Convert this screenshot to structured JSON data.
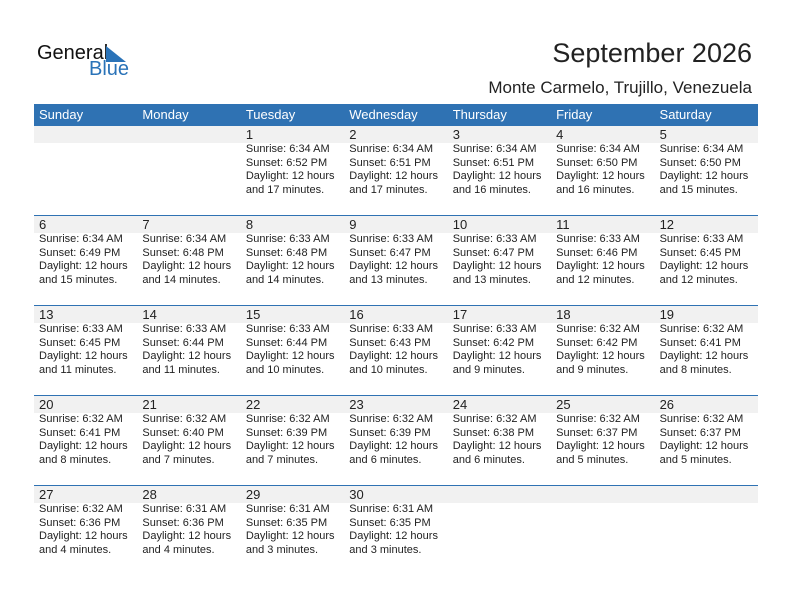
{
  "logo": {
    "word1": "General",
    "word2": "Blue"
  },
  "header": {
    "title": "September 2026",
    "location": "Monte Carmelo, Trujillo, Venezuela"
  },
  "colors": {
    "accent": "#2f72b3",
    "band": "#f1f1f1"
  },
  "weekdays": [
    "Sunday",
    "Monday",
    "Tuesday",
    "Wednesday",
    "Thursday",
    "Friday",
    "Saturday"
  ],
  "weeks": [
    [
      null,
      null,
      {
        "day": "1",
        "sunrise": "Sunrise: 6:34 AM",
        "sunset": "Sunset: 6:52 PM",
        "daylight1": "Daylight: 12 hours",
        "daylight2": "and 17 minutes."
      },
      {
        "day": "2",
        "sunrise": "Sunrise: 6:34 AM",
        "sunset": "Sunset: 6:51 PM",
        "daylight1": "Daylight: 12 hours",
        "daylight2": "and 17 minutes."
      },
      {
        "day": "3",
        "sunrise": "Sunrise: 6:34 AM",
        "sunset": "Sunset: 6:51 PM",
        "daylight1": "Daylight: 12 hours",
        "daylight2": "and 16 minutes."
      },
      {
        "day": "4",
        "sunrise": "Sunrise: 6:34 AM",
        "sunset": "Sunset: 6:50 PM",
        "daylight1": "Daylight: 12 hours",
        "daylight2": "and 16 minutes."
      },
      {
        "day": "5",
        "sunrise": "Sunrise: 6:34 AM",
        "sunset": "Sunset: 6:50 PM",
        "daylight1": "Daylight: 12 hours",
        "daylight2": "and 15 minutes."
      }
    ],
    [
      {
        "day": "6",
        "sunrise": "Sunrise: 6:34 AM",
        "sunset": "Sunset: 6:49 PM",
        "daylight1": "Daylight: 12 hours",
        "daylight2": "and 15 minutes."
      },
      {
        "day": "7",
        "sunrise": "Sunrise: 6:34 AM",
        "sunset": "Sunset: 6:48 PM",
        "daylight1": "Daylight: 12 hours",
        "daylight2": "and 14 minutes."
      },
      {
        "day": "8",
        "sunrise": "Sunrise: 6:33 AM",
        "sunset": "Sunset: 6:48 PM",
        "daylight1": "Daylight: 12 hours",
        "daylight2": "and 14 minutes."
      },
      {
        "day": "9",
        "sunrise": "Sunrise: 6:33 AM",
        "sunset": "Sunset: 6:47 PM",
        "daylight1": "Daylight: 12 hours",
        "daylight2": "and 13 minutes."
      },
      {
        "day": "10",
        "sunrise": "Sunrise: 6:33 AM",
        "sunset": "Sunset: 6:47 PM",
        "daylight1": "Daylight: 12 hours",
        "daylight2": "and 13 minutes."
      },
      {
        "day": "11",
        "sunrise": "Sunrise: 6:33 AM",
        "sunset": "Sunset: 6:46 PM",
        "daylight1": "Daylight: 12 hours",
        "daylight2": "and 12 minutes."
      },
      {
        "day": "12",
        "sunrise": "Sunrise: 6:33 AM",
        "sunset": "Sunset: 6:45 PM",
        "daylight1": "Daylight: 12 hours",
        "daylight2": "and 12 minutes."
      }
    ],
    [
      {
        "day": "13",
        "sunrise": "Sunrise: 6:33 AM",
        "sunset": "Sunset: 6:45 PM",
        "daylight1": "Daylight: 12 hours",
        "daylight2": "and 11 minutes."
      },
      {
        "day": "14",
        "sunrise": "Sunrise: 6:33 AM",
        "sunset": "Sunset: 6:44 PM",
        "daylight1": "Daylight: 12 hours",
        "daylight2": "and 11 minutes."
      },
      {
        "day": "15",
        "sunrise": "Sunrise: 6:33 AM",
        "sunset": "Sunset: 6:44 PM",
        "daylight1": "Daylight: 12 hours",
        "daylight2": "and 10 minutes."
      },
      {
        "day": "16",
        "sunrise": "Sunrise: 6:33 AM",
        "sunset": "Sunset: 6:43 PM",
        "daylight1": "Daylight: 12 hours",
        "daylight2": "and 10 minutes."
      },
      {
        "day": "17",
        "sunrise": "Sunrise: 6:33 AM",
        "sunset": "Sunset: 6:42 PM",
        "daylight1": "Daylight: 12 hours",
        "daylight2": "and 9 minutes."
      },
      {
        "day": "18",
        "sunrise": "Sunrise: 6:32 AM",
        "sunset": "Sunset: 6:42 PM",
        "daylight1": "Daylight: 12 hours",
        "daylight2": "and 9 minutes."
      },
      {
        "day": "19",
        "sunrise": "Sunrise: 6:32 AM",
        "sunset": "Sunset: 6:41 PM",
        "daylight1": "Daylight: 12 hours",
        "daylight2": "and 8 minutes."
      }
    ],
    [
      {
        "day": "20",
        "sunrise": "Sunrise: 6:32 AM",
        "sunset": "Sunset: 6:41 PM",
        "daylight1": "Daylight: 12 hours",
        "daylight2": "and 8 minutes."
      },
      {
        "day": "21",
        "sunrise": "Sunrise: 6:32 AM",
        "sunset": "Sunset: 6:40 PM",
        "daylight1": "Daylight: 12 hours",
        "daylight2": "and 7 minutes."
      },
      {
        "day": "22",
        "sunrise": "Sunrise: 6:32 AM",
        "sunset": "Sunset: 6:39 PM",
        "daylight1": "Daylight: 12 hours",
        "daylight2": "and 7 minutes."
      },
      {
        "day": "23",
        "sunrise": "Sunrise: 6:32 AM",
        "sunset": "Sunset: 6:39 PM",
        "daylight1": "Daylight: 12 hours",
        "daylight2": "and 6 minutes."
      },
      {
        "day": "24",
        "sunrise": "Sunrise: 6:32 AM",
        "sunset": "Sunset: 6:38 PM",
        "daylight1": "Daylight: 12 hours",
        "daylight2": "and 6 minutes."
      },
      {
        "day": "25",
        "sunrise": "Sunrise: 6:32 AM",
        "sunset": "Sunset: 6:37 PM",
        "daylight1": "Daylight: 12 hours",
        "daylight2": "and 5 minutes."
      },
      {
        "day": "26",
        "sunrise": "Sunrise: 6:32 AM",
        "sunset": "Sunset: 6:37 PM",
        "daylight1": "Daylight: 12 hours",
        "daylight2": "and 5 minutes."
      }
    ],
    [
      {
        "day": "27",
        "sunrise": "Sunrise: 6:32 AM",
        "sunset": "Sunset: 6:36 PM",
        "daylight1": "Daylight: 12 hours",
        "daylight2": "and 4 minutes."
      },
      {
        "day": "28",
        "sunrise": "Sunrise: 6:31 AM",
        "sunset": "Sunset: 6:36 PM",
        "daylight1": "Daylight: 12 hours",
        "daylight2": "and 4 minutes."
      },
      {
        "day": "29",
        "sunrise": "Sunrise: 6:31 AM",
        "sunset": "Sunset: 6:35 PM",
        "daylight1": "Daylight: 12 hours",
        "daylight2": "and 3 minutes."
      },
      {
        "day": "30",
        "sunrise": "Sunrise: 6:31 AM",
        "sunset": "Sunset: 6:35 PM",
        "daylight1": "Daylight: 12 hours",
        "daylight2": "and 3 minutes."
      },
      null,
      null,
      null
    ]
  ]
}
